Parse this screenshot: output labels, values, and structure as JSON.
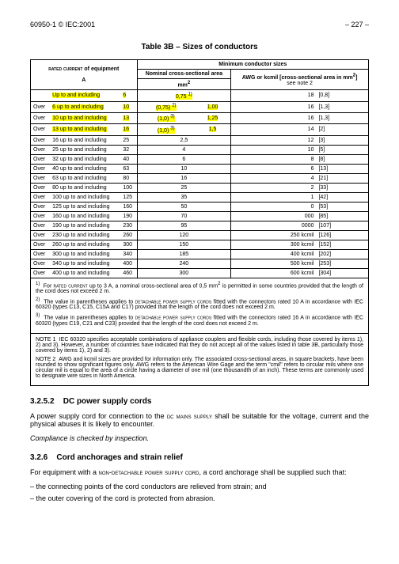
{
  "header": {
    "left": "60950-1 © IEC:2001",
    "right": "– 227 –"
  },
  "table": {
    "title": "Table 3B – Sizes of conductors",
    "head": {
      "rated_label_html": "<span class='small-caps'>rated current</span> of equipment",
      "rated_unit": "A",
      "min_sizes": "Minimum conductor sizes",
      "nominal_label": "Nominal cross-sectional area",
      "nominal_unit_html": "mm<span class='sup'>2</span>",
      "awg_label_html": "AWG or kcmil [cross-sectional area in mm<span class='sup'>2</span>]",
      "awg_note": "see note 2"
    },
    "rows": [
      {
        "r1": "",
        "r2": "Up to and including",
        "r3": "6",
        "hl23": true,
        "n": "0,75",
        "nsup": "1)",
        "nhl": true,
        "a1": "18",
        "a2": "[0,8]"
      },
      {
        "r1": "Over",
        "r2": "6 up to and including",
        "r3": "10",
        "hl23": true,
        "n": "(0,75)",
        "nsup": "2)",
        "nhl": true,
        "n2": "1,00",
        "a1": "16",
        "a2": "[1,3]"
      },
      {
        "r1": "Over",
        "r2": "10 up to and including",
        "r3": "13",
        "hl23": true,
        "n": "(1,0)",
        "nsup": "3)",
        "nhl": true,
        "n2": "1,25",
        "a1": "16",
        "a2": "[1,3]"
      },
      {
        "r1": "Over",
        "r2": "13 up to and including",
        "r3": "16",
        "hl23": true,
        "n": "(1,0)",
        "nsup": "3)",
        "nhl": true,
        "n2": "1,5",
        "a1": "14",
        "a2": "[2]"
      },
      {
        "r1": "Over",
        "r2": "16 up to and including",
        "r3": "25",
        "n": "2,5",
        "a1": "12",
        "a2": "[3]"
      },
      {
        "r1": "Over",
        "r2": "25 up to and including",
        "r3": "32",
        "n": "4",
        "a1": "10",
        "a2": "[5]"
      },
      {
        "r1": "Over",
        "r2": "32 up to and including",
        "r3": "40",
        "n": "6",
        "a1": "8",
        "a2": "[8]"
      },
      {
        "r1": "Over",
        "r2": "40 up to and including",
        "r3": "63",
        "n": "10",
        "a1": "6",
        "a2": "[13]"
      },
      {
        "r1": "Over",
        "r2": "63 up to and including",
        "r3": "80",
        "n": "16",
        "a1": "4",
        "a2": "[21]"
      },
      {
        "r1": "Over",
        "r2": "80 up to and including",
        "r3": "100",
        "n": "25",
        "a1": "2",
        "a2": "[33]"
      },
      {
        "r1": "Over",
        "r2": "100 up to and including",
        "r3": "125",
        "n": "35",
        "a1": "1",
        "a2": "[42]"
      },
      {
        "r1": "Over",
        "r2": "125 up to and including",
        "r3": "160",
        "n": "50",
        "a1": "0",
        "a2": "[53]"
      },
      {
        "r1": "Over",
        "r2": "160 up to and including",
        "r3": "190",
        "n": "70",
        "a1": "000",
        "a2": "[85]"
      },
      {
        "r1": "Over",
        "r2": "190 up to and including",
        "r3": "230",
        "n": "95",
        "a1": "0000",
        "a2": "[107]"
      },
      {
        "r1": "Over",
        "r2": "230 up to and including",
        "r3": "260",
        "n": "120",
        "a1": "250 kcmil",
        "a2": "[126]"
      },
      {
        "r1": "Over",
        "r2": "260 up to and including",
        "r3": "300",
        "n": "150",
        "a1": "300 kcmil",
        "a2": "[152]"
      },
      {
        "r1": "Over",
        "r2": "300 up to and including",
        "r3": "340",
        "n": "185",
        "a1": "400 kcmil",
        "a2": "[202]"
      },
      {
        "r1": "Over",
        "r2": "340 up to and including",
        "r3": "400",
        "n": "240",
        "a1": "500 kcmil",
        "a2": "[253]"
      },
      {
        "r1": "Over",
        "r2": "400 up to and including",
        "r3": "460",
        "n": "300",
        "a1": "600 kcmil",
        "a2": "[304]"
      }
    ],
    "footnotes": [
      "<span class='sup'>1)</span>&nbsp;&nbsp;For <span class='small-caps'>rated current</span> up to 3 A, a nominal cross-sectional area of 0,5 mm<span class='sup'>2</span> is permitted in some countries provided that the length of the cord does not exceed 2 m.",
      "<span class='sup'>2)</span>&nbsp;&nbsp;The value in parentheses applies to <span class='small-caps'>detachable power supply cords</span> fitted with the connectors rated 10 A in accordance with IEC 60320 (types C13, C15, C15A and C17) provided that the length of the cord does not exceed 2 m.",
      "<span class='sup'>3)</span>&nbsp;&nbsp;The value in parentheses applies to <span class='small-caps'>detachable power supply cords</span> fitted with the connectors rated 16 A in accordance with IEC 60320 (types C19, C21 and C23) provided that the length of the cord does not exceed 2 m."
    ],
    "notes": [
      "NOTE 1&nbsp;&nbsp;IEC 60320 specifies acceptable combinations of appliance couplers and flexible cords, including those covered by items 1), 2) and 3). However, a number of countries have indicated that they do not accept all of the values listed in table 3B, particularly those covered by items 1), 2) and 3).",
      "NOTE 2&nbsp;&nbsp;AWG and kcmil sizes are provided for information only. The associated cross-sectional areas, in square brackets, have been rounded to show significant figures only. AWG refers to the American Wire Gage and the term \"cmil\" refers to circular mils where one circular mil is equal to the area of a circle having a diameter of one mil (one thousandth of an inch). These terms are commonly used to designate wire sizes in North America."
    ]
  },
  "sections": {
    "s1_num": "3.2.5.2",
    "s1_title": "DC power supply cords",
    "s1_p1_html": "A power supply cord for connection to the <span class='small-caps'>dc mains supply</span> shall be suitable for the voltage, current and the physical abuses it is likely to encounter.",
    "s1_p2": "Compliance is checked by inspection.",
    "s2_num": "3.2.6",
    "s2_title": "Cord anchorages and strain relief",
    "s2_p1_html": "For equipment with a <span class='small-caps'>non-detachable power supply cord</span>, a cord anchorage shall be supplied such that:",
    "s2_li1": "the connecting points of the cord conductors are relieved from strain; and",
    "s2_li2": "the outer covering of the cord is protected from abrasion."
  },
  "colors": {
    "highlight": "#ffff00"
  }
}
